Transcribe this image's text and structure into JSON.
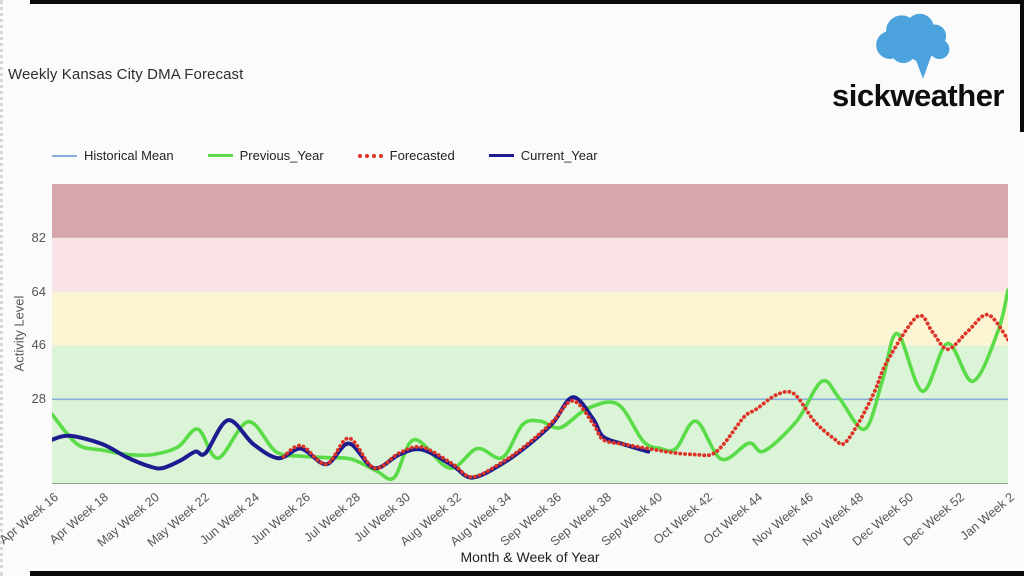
{
  "page": {
    "title": "Weekly Kansas City DMA Forecast"
  },
  "logo": {
    "text": "sickweather",
    "cloud_color": "#4ba2dc"
  },
  "legend": [
    {
      "label": "Historical Mean",
      "color": "#86afdc",
      "style": "thin"
    },
    {
      "label": "Previous_Year",
      "color": "#5adc49",
      "style": "thick"
    },
    {
      "label": "Forecasted",
      "color": "#dd3327",
      "style": "dotted"
    },
    {
      "label": "Current_Year",
      "color": "#1c1c8f",
      "style": "thick"
    }
  ],
  "chart_data": {
    "type": "line",
    "title": "Weekly Kansas City DMA Forecast",
    "xlabel": "Month & Week of Year",
    "ylabel": "Activity Level",
    "ylim": [
      0,
      100
    ],
    "y_ticks": [
      28,
      46,
      64,
      82
    ],
    "x_week_span": 38,
    "x_tick_labels": [
      "Apr Week 16",
      "Apr Week 18",
      "May Week 20",
      "May Week 22",
      "Jun Week 24",
      "Jun Week 26",
      "Jul Week 28",
      "Jul Week 30",
      "Aug Week 32",
      "Aug Week 34",
      "Sep Week 36",
      "Sep Week 38",
      "Sep Week 40",
      "Oct Week 42",
      "Oct Week 44",
      "Nov Week 46",
      "Nov Week 48",
      "Dec Week 50",
      "Dec Week 52",
      "Jan Week 2"
    ],
    "grid": false,
    "legend_position": "top-left",
    "bands": [
      {
        "from": 0,
        "to": 46,
        "color": "#dbf3d6",
        "meaning": "low"
      },
      {
        "from": 46,
        "to": 64,
        "color": "#fcf5d4",
        "meaning": "guarded"
      },
      {
        "from": 64,
        "to": 82,
        "color": "#f9e3e6",
        "meaning": "elevated"
      },
      {
        "from": 82,
        "to": 100,
        "color": "#d5a6ac",
        "meaning": "high"
      }
    ],
    "series": [
      {
        "name": "Historical Mean",
        "color": "#86afdc",
        "style": "solid",
        "width": 1.6,
        "value": 28,
        "points": [
          [
            0,
            28
          ],
          [
            38,
            28
          ]
        ]
      },
      {
        "name": "Previous_Year",
        "color": "#5adc49",
        "style": "solid",
        "width": 3.6,
        "points": [
          [
            0,
            23
          ],
          [
            1,
            13
          ],
          [
            2,
            11
          ],
          [
            3,
            9.5
          ],
          [
            4,
            9.5
          ],
          [
            5,
            12
          ],
          [
            5.8,
            18
          ],
          [
            6.6,
            8.3
          ],
          [
            7.8,
            20.5
          ],
          [
            8.9,
            10.5
          ],
          [
            9.9,
            9
          ],
          [
            10.9,
            8.5
          ],
          [
            11.9,
            8
          ],
          [
            12.9,
            4
          ],
          [
            13.6,
            1.8
          ],
          [
            14.4,
            14.5
          ],
          [
            15.8,
            5
          ],
          [
            16.9,
            11.5
          ],
          [
            17.9,
            8.5
          ],
          [
            18.7,
            19.5
          ],
          [
            19.4,
            20.7
          ],
          [
            20.2,
            18.5
          ],
          [
            21.3,
            25
          ],
          [
            22.5,
            26.3
          ],
          [
            23.5,
            14
          ],
          [
            24.2,
            11.5
          ],
          [
            24.8,
            11.5
          ],
          [
            25.6,
            20.7
          ],
          [
            26.6,
            8
          ],
          [
            27.7,
            13.3
          ],
          [
            28.3,
            10.7
          ],
          [
            29.6,
            20.7
          ],
          [
            30.6,
            34
          ],
          [
            31.3,
            28.3
          ],
          [
            32.3,
            18
          ],
          [
            33,
            34
          ],
          [
            33.6,
            50
          ],
          [
            34.6,
            30.7
          ],
          [
            35.6,
            46.7
          ],
          [
            36.6,
            34
          ],
          [
            37.6,
            50.7
          ],
          [
            38,
            64.5
          ]
        ]
      },
      {
        "name": "Current_Year",
        "color": "#1c1c8f",
        "style": "solid",
        "width": 4,
        "points": [
          [
            0,
            14.5
          ],
          [
            0.7,
            15.8
          ],
          [
            2,
            13
          ],
          [
            3,
            8.5
          ],
          [
            3.9,
            5.5
          ],
          [
            4.4,
            5
          ],
          [
            5.1,
            7.5
          ],
          [
            5.7,
            10.5
          ],
          [
            6.1,
            10
          ],
          [
            7,
            21
          ],
          [
            8,
            13
          ],
          [
            9,
            8.3
          ],
          [
            9.9,
            11.5
          ],
          [
            10.9,
            6.3
          ],
          [
            11.8,
            13.2
          ],
          [
            12.8,
            5
          ],
          [
            13.8,
            9.5
          ],
          [
            14.7,
            11.2
          ],
          [
            15.9,
            6
          ],
          [
            16.7,
            1.8
          ],
          [
            17.9,
            6.5
          ],
          [
            18.9,
            12.5
          ],
          [
            19.9,
            20
          ],
          [
            20.7,
            28.7
          ],
          [
            21.5,
            21.5
          ],
          [
            21.9,
            15.5
          ],
          [
            22.7,
            13
          ],
          [
            23.7,
            10.5
          ]
        ]
      },
      {
        "name": "Forecasted",
        "color": "#dd3327",
        "style": "dotted",
        "width": 3.8,
        "points": [
          [
            9.2,
            8.8
          ],
          [
            9.9,
            12.5
          ],
          [
            10.9,
            6.3
          ],
          [
            11.8,
            15
          ],
          [
            12.8,
            5
          ],
          [
            13.8,
            10
          ],
          [
            14.7,
            12
          ],
          [
            15.9,
            6.5
          ],
          [
            16.7,
            2
          ],
          [
            17.9,
            7
          ],
          [
            18.9,
            13
          ],
          [
            19.9,
            20.5
          ],
          [
            20.7,
            27.5
          ],
          [
            21.5,
            20
          ],
          [
            21.9,
            14.5
          ],
          [
            22.7,
            13
          ],
          [
            23.7,
            11.5
          ],
          [
            24.8,
            10
          ],
          [
            25.6,
            9.5
          ],
          [
            26.2,
            9.5
          ],
          [
            26.7,
            13
          ],
          [
            27.5,
            22
          ],
          [
            28,
            24.7
          ],
          [
            28.8,
            29.5
          ],
          [
            29.5,
            29.8
          ],
          [
            30.3,
            20.7
          ],
          [
            31.1,
            14.7
          ],
          [
            31.5,
            13.3
          ],
          [
            32.1,
            20.7
          ],
          [
            32.7,
            30.7
          ],
          [
            33.2,
            40.7
          ],
          [
            34.4,
            55.7
          ],
          [
            35,
            50.5
          ],
          [
            35.6,
            44.7
          ],
          [
            36.4,
            50.7
          ],
          [
            37.2,
            56.3
          ],
          [
            38,
            48
          ]
        ]
      }
    ]
  }
}
